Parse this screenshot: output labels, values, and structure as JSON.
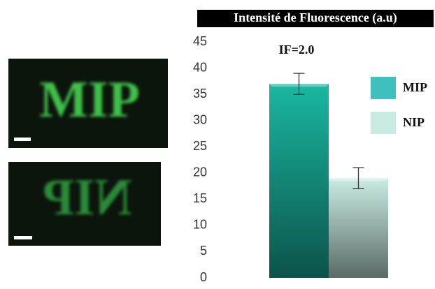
{
  "images": [
    {
      "label": "MIP"
    },
    {
      "label": "NIP"
    }
  ],
  "chart_data": {
    "type": "bar",
    "title": "Intensité de Fluorescence (a.u)",
    "annotation": "IF=2.0",
    "categories": [
      null
    ],
    "series": [
      {
        "name": "MIP",
        "color": "#1ab8a2",
        "legend_color": "#3fbfbe",
        "values": [
          37
        ],
        "errors": [
          2
        ]
      },
      {
        "name": "NIP",
        "color": "#c9ece4",
        "legend_color": "#c8ebe3",
        "values": [
          19
        ],
        "errors": [
          2
        ]
      }
    ],
    "ylim": [
      0,
      45
    ],
    "yticks": [
      0,
      5,
      10,
      15,
      20,
      25,
      30,
      35,
      40,
      45
    ],
    "grid": false
  }
}
